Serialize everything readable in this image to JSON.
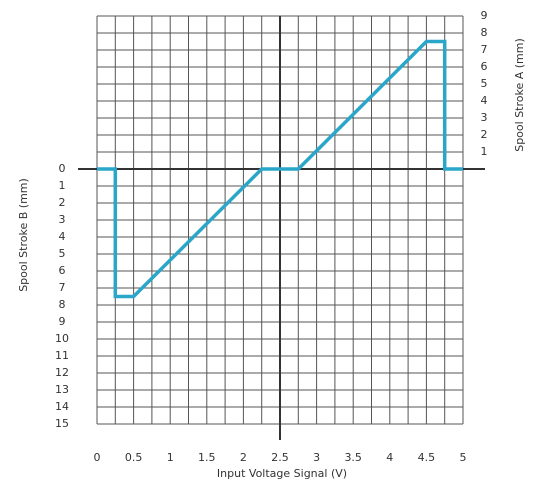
{
  "chart_data": {
    "type": "line",
    "xlabel": "Input Voltage Signal (V)",
    "ylabel": "Spool Stroke B (mm)",
    "y2label": "Spool Stroke A (mm)",
    "x": [
      0,
      0.25,
      0.25,
      0.5,
      2.25,
      2.75,
      4.5,
      4.75,
      4.75,
      5
    ],
    "values": [
      0,
      0,
      -7.5,
      -7.5,
      0,
      0,
      7.5,
      7.5,
      0,
      0
    ],
    "color": "#2aa6c8",
    "xlim": [
      0,
      5
    ],
    "xticks": [
      0,
      0.5,
      1,
      1.5,
      2,
      2.5,
      3,
      3.5,
      4,
      4.5,
      5
    ],
    "ylim": [
      -15,
      9
    ],
    "yticks": [
      0,
      {
        "value": -1,
        "label": "1"
      },
      {
        "value": -2,
        "label": "2"
      },
      {
        "value": -3,
        "label": "3"
      },
      {
        "value": -4,
        "label": "4"
      },
      {
        "value": -5,
        "label": "5"
      },
      {
        "value": -6,
        "label": "6"
      },
      {
        "value": -7,
        "label": "7"
      },
      {
        "value": -8,
        "label": "8"
      },
      {
        "value": -9,
        "label": "9"
      },
      {
        "value": -10,
        "label": "10"
      },
      {
        "value": -11,
        "label": "11"
      },
      {
        "value": -12,
        "label": "12"
      },
      {
        "value": -13,
        "label": "13"
      },
      {
        "value": -14,
        "label": "14"
      },
      {
        "value": -15,
        "label": "15"
      }
    ],
    "y2lim": [
      -15,
      9
    ],
    "y2ticks": [
      1,
      2,
      3,
      4,
      5,
      6,
      7,
      8,
      9
    ],
    "grid": true
  }
}
